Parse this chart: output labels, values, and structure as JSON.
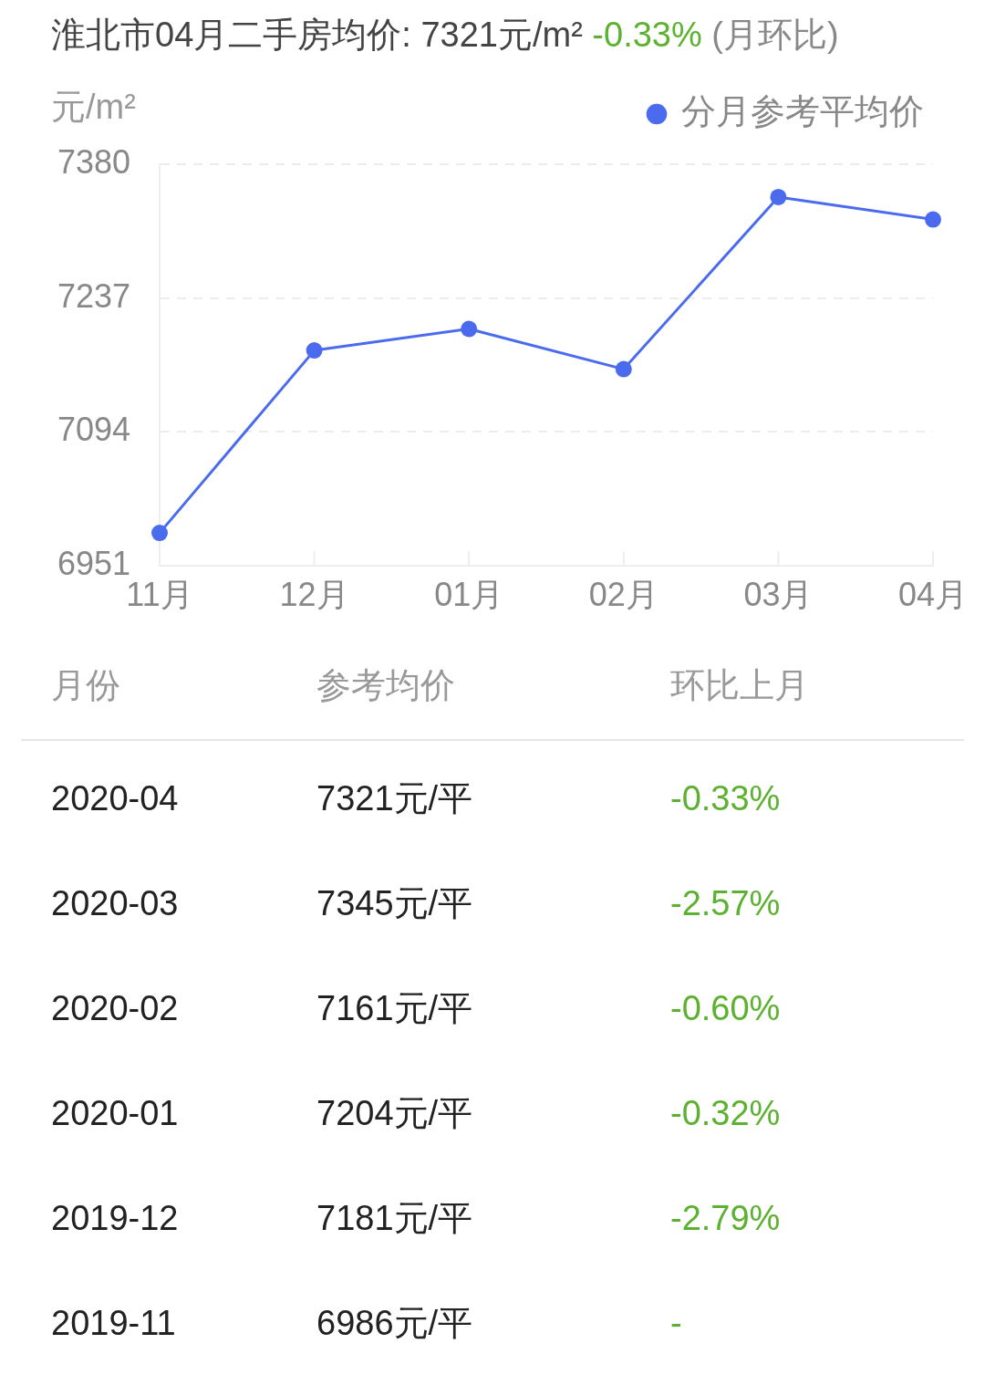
{
  "chart_data": [
    {
      "type": "line",
      "title": "淮北市04月二手房均价: 7321元/m²",
      "subtitle": "-0.33% (月环比)",
      "ylabel": "元/m²",
      "categories": [
        "11月",
        "12月",
        "01月",
        "02月",
        "03月",
        "04月"
      ],
      "series": [
        {
          "name": "分月参考平均价",
          "color": "#4b6bef",
          "values": [
            6986,
            7181,
            7204,
            7161,
            7345,
            7321
          ]
        }
      ],
      "ylim": [
        6951,
        7380
      ],
      "yticks": [
        6951,
        7094,
        7237,
        7380
      ],
      "grid": "y",
      "legend": "top right",
      "marker": "circle"
    },
    {
      "type": "other",
      "annotations": [
        "月份",
        "参考均价",
        "环比上月",
        "2020-04",
        "7321元/平",
        "-0.33%",
        "2020-03",
        "7345元/平",
        "-2.57%",
        "2020-02",
        "7161元/平",
        "-0.60%",
        "2020-01",
        "7204元/平",
        "-0.32%",
        "2019-12",
        "7181元/平",
        "-2.79%",
        "2019-11",
        "6986元/平",
        "-"
      ]
    }
  ]
}
